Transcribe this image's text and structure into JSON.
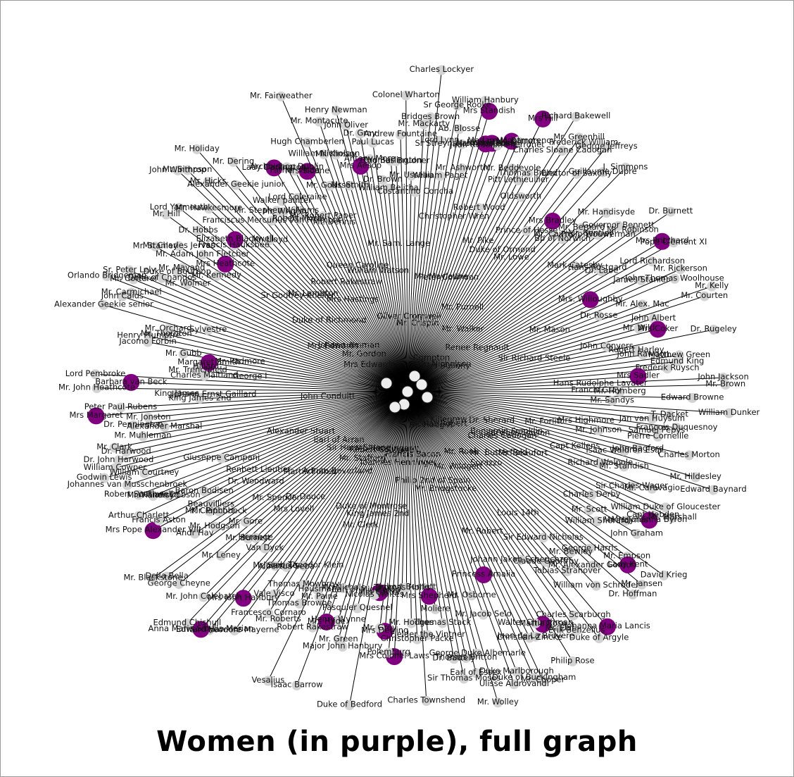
{
  "caption": "Women (in purple), full graph",
  "colors": {
    "woman": "#800080",
    "man": "#d3d3d3",
    "edge": "#000000",
    "label": "#111111"
  },
  "nodes": [
    {
      "label": "William Paget",
      "g": "m"
    },
    {
      "label": "Sr George Rooke",
      "g": "m"
    },
    {
      "label": "Ab. Blosse",
      "g": "m"
    },
    {
      "label": "Sr Streynsham Masters",
      "g": "m"
    },
    {
      "label": "Mr. Ashworth",
      "g": "m"
    },
    {
      "label": "William Hanbury",
      "g": "m"
    },
    {
      "label": "Mrs Standish",
      "g": "w"
    },
    {
      "label": "Mrs Anne Rose",
      "g": "w"
    },
    {
      "label": "Miss Stanley",
      "g": "w"
    },
    {
      "label": "Jean Rodolphe Perronet",
      "g": "m"
    },
    {
      "label": "Robert Wood",
      "g": "m"
    },
    {
      "label": "Madam Montmorency",
      "g": "w"
    },
    {
      "label": "Mr. Barrets",
      "g": "m"
    },
    {
      "label": "Mr. Beddevole",
      "g": "m"
    },
    {
      "label": "Mrs Hill",
      "g": "w"
    },
    {
      "label": "Pitt Lethieullier",
      "g": "m"
    },
    {
      "label": "Thomas Brand",
      "g": "m"
    },
    {
      "label": "Oldsworth",
      "g": "m"
    },
    {
      "label": "Richard Bakewell",
      "g": "m"
    },
    {
      "label": "Charles Sloane Cadogan",
      "g": "m"
    },
    {
      "label": "Mr. Greenhill",
      "g": "m"
    },
    {
      "label": "Frederick William",
      "g": "m"
    },
    {
      "label": "Prince of Hesse",
      "g": "m"
    },
    {
      "label": "Elector of Saxony",
      "g": "m"
    },
    {
      "label": "George Jeffreys",
      "g": "m"
    },
    {
      "label": "Mrs Bradley",
      "g": "w"
    },
    {
      "label": "Guillaume Dupré",
      "g": "m"
    },
    {
      "label": "Mr. Cairns",
      "g": "m"
    },
    {
      "label": "J. Simmons",
      "g": "m"
    },
    {
      "label": "Bp of Norwich",
      "g": "m"
    },
    {
      "label": "Mr. Bernard",
      "g": "m"
    },
    {
      "label": "Mr. Handisyde",
      "g": "m"
    },
    {
      "label": "Mr. Bentley",
      "g": "m"
    },
    {
      "label": "Philip Wouwerman",
      "g": "m"
    },
    {
      "label": "Governor Bennett",
      "g": "m"
    },
    {
      "label": "Mark Catesby",
      "g": "m"
    },
    {
      "label": "Mr. Robinson",
      "g": "m"
    },
    {
      "label": "Dr. Burnett",
      "g": "m"
    },
    {
      "label": "Hans Rostgard",
      "g": "m"
    },
    {
      "label": "Dr. Labe",
      "g": "m"
    },
    {
      "label": "Mrs Pritchard",
      "g": "w"
    },
    {
      "label": "Pope Clement XI",
      "g": "m"
    },
    {
      "label": "Lord Richardson",
      "g": "m"
    },
    {
      "label": "Mrs. Willoughby",
      "g": "w"
    },
    {
      "label": "James Stanier",
      "g": "m"
    },
    {
      "label": "Mr. Rickerson",
      "g": "m"
    },
    {
      "label": "John Thomas Woolhouse",
      "g": "m"
    },
    {
      "label": "Dr. Rosse",
      "g": "m"
    },
    {
      "label": "Mr. Alex. Mac",
      "g": "m"
    },
    {
      "label": "Mr. Kelly",
      "g": "m"
    },
    {
      "label": "Mr. Courten",
      "g": "m"
    },
    {
      "label": "John Albert",
      "g": "m"
    },
    {
      "label": "Mr. Wild",
      "g": "m"
    },
    {
      "label": "Mrs Coker",
      "g": "w"
    },
    {
      "label": "John Conyers",
      "g": "m"
    },
    {
      "label": "Dr. Rugeley",
      "g": "m"
    },
    {
      "label": "Robert Harley",
      "g": "m"
    },
    {
      "label": "John Rawdon",
      "g": "m"
    },
    {
      "label": "Matthew Green",
      "g": "m"
    },
    {
      "label": "Edmund King",
      "g": "m"
    },
    {
      "label": "Frederik Ruysch",
      "g": "m"
    },
    {
      "label": "Mrs Sadler",
      "g": "w"
    },
    {
      "label": "John Jackson",
      "g": "m"
    },
    {
      "label": "Mr. Brown",
      "g": "m"
    },
    {
      "label": "Mr. Homberg",
      "g": "m"
    },
    {
      "label": "Edward Browne",
      "g": "m"
    },
    {
      "label": "Mr. Sandys",
      "g": "m"
    },
    {
      "label": "William Dunker",
      "g": "m"
    },
    {
      "label": "T. Dacket",
      "g": "m"
    },
    {
      "label": "Jan van Huysum",
      "g": "m"
    },
    {
      "label": "Francois Duquesnoy",
      "g": "m"
    },
    {
      "label": "Samuel Pepys",
      "g": "m"
    },
    {
      "label": "Pierre Corneille",
      "g": "m"
    },
    {
      "label": "Mr. Johnson",
      "g": "m"
    },
    {
      "label": "Charles Morton",
      "g": "m"
    },
    {
      "label": "John Bagford",
      "g": "m"
    },
    {
      "label": "Isaac Waldron Esqr",
      "g": "m"
    },
    {
      "label": "Mr. Hildesley",
      "g": "m"
    },
    {
      "label": "Edward Baynard",
      "g": "m"
    },
    {
      "label": "Mr. Standish",
      "g": "m"
    },
    {
      "label": "Richard Walpole",
      "g": "m"
    },
    {
      "label": "Mr. Caravagio",
      "g": "m"
    },
    {
      "label": "Sir Charles Wager",
      "g": "m"
    },
    {
      "label": "William Duke of Gloucester",
      "g": "m"
    },
    {
      "label": "Mr. Marshall",
      "g": "m"
    },
    {
      "label": "Capt Hebden",
      "g": "m"
    },
    {
      "label": "Mrs Johanna Byron",
      "g": "w"
    },
    {
      "label": "Charles Derby",
      "g": "m"
    },
    {
      "label": "Mr. Haynes",
      "g": "m"
    },
    {
      "label": "John Graham",
      "g": "m"
    },
    {
      "label": "Mr. Scott",
      "g": "m"
    },
    {
      "label": "William Sherard",
      "g": "m"
    },
    {
      "label": "David Krieg",
      "g": "m"
    },
    {
      "label": "Mr. Empson",
      "g": "m"
    },
    {
      "label": "Lady Kent",
      "g": "w"
    },
    {
      "label": "Mr. Jansen",
      "g": "m"
    },
    {
      "label": "George Harris",
      "g": "m"
    },
    {
      "label": "Dr. Hoffman",
      "g": "m"
    },
    {
      "label": "Mr. Alexander Gordon",
      "g": "m"
    },
    {
      "label": "Mr. Bewley",
      "g": "m"
    },
    {
      "label": "William von Schroder",
      "g": "m"
    },
    {
      "label": "Sir Edward Nicholas",
      "g": "m"
    },
    {
      "label": "Tobias Stranover",
      "g": "m"
    },
    {
      "label": "Johanna Maria Lancis",
      "g": "w"
    },
    {
      "label": "Claude Geoffroy",
      "g": "m"
    },
    {
      "label": "Duke of Argyle",
      "g": "m"
    },
    {
      "label": "Charles Scarburgh",
      "g": "m"
    },
    {
      "label": "Erik Benzelius",
      "g": "m"
    },
    {
      "label": "Johann Jakob Scheuchzer",
      "g": "m"
    },
    {
      "label": "Mr. Elst",
      "g": "m"
    },
    {
      "label": "Philip Rose",
      "g": "m"
    },
    {
      "label": "Mattie Rose",
      "g": "w"
    },
    {
      "label": "Walter Churchman",
      "g": "m"
    },
    {
      "label": "Jean de La Bruyere",
      "g": "m"
    },
    {
      "label": "Christian Zincke",
      "g": "m"
    },
    {
      "label": "Mr. Cooper",
      "g": "m"
    },
    {
      "label": "Duke of Buckingham",
      "g": "m"
    },
    {
      "label": "Princess Amalia",
      "g": "w"
    },
    {
      "label": "Duke Marlborough",
      "g": "m"
    },
    {
      "label": "Ulisse Aldrovandi",
      "g": "m"
    },
    {
      "label": "Mr. Jacob Selo",
      "g": "m"
    },
    {
      "label": "Mr. Osborne",
      "g": "m"
    },
    {
      "label": "Mr. Wolley",
      "g": "m"
    },
    {
      "label": "George Duke Albemarle",
      "g": "m"
    },
    {
      "label": "Earl of Essex",
      "g": "m"
    },
    {
      "label": "Thomas Britton",
      "g": "m"
    },
    {
      "label": "Sir Thomas Moses",
      "g": "m"
    },
    {
      "label": "Dr. Battely",
      "g": "m"
    },
    {
      "label": "Thomas Stack",
      "g": "m"
    },
    {
      "label": "Moliere",
      "g": "m"
    },
    {
      "label": "Mrs Shepherd",
      "g": "w"
    },
    {
      "label": "Fielder the Vintner",
      "g": "m"
    },
    {
      "label": "Charles Townshend",
      "g": "m"
    },
    {
      "label": "Christopher Packe",
      "g": "m"
    },
    {
      "label": "Mr. Hodges",
      "g": "m"
    },
    {
      "label": "Jigbert Burnett",
      "g": "m"
    },
    {
      "label": "Thomas Hollis",
      "g": "m"
    },
    {
      "label": "Mrs Colonel Laws",
      "g": "w"
    },
    {
      "label": "Polemburg",
      "g": "m"
    },
    {
      "label": "Mrs Derring",
      "g": "w"
    },
    {
      "label": "Mr. Grey",
      "g": "m"
    },
    {
      "label": "Mrs Catter",
      "g": "w"
    },
    {
      "label": "Nicolas Waites",
      "g": "m"
    },
    {
      "label": "Duke of Bedford",
      "g": "m"
    },
    {
      "label": "Earl of Middleton",
      "g": "m"
    },
    {
      "label": "Pasquier Quesnel",
      "g": "m"
    },
    {
      "label": "Major John Hanbury",
      "g": "m"
    },
    {
      "label": "Mr. Green",
      "g": "m"
    },
    {
      "label": "Henry Wynne",
      "g": "m"
    },
    {
      "label": "Mr. Nichols",
      "g": "m"
    },
    {
      "label": "Mrs Hyde",
      "g": "w"
    },
    {
      "label": "Isaac Barrow",
      "g": "m"
    },
    {
      "label": "Robert Rakestraw",
      "g": "m"
    },
    {
      "label": "Mr. Paine",
      "g": "m"
    },
    {
      "label": "Housman",
      "g": "m"
    },
    {
      "label": "Vesalius",
      "g": "m"
    },
    {
      "label": "Thomas Browne",
      "g": "m"
    },
    {
      "label": "Thomas Mowbray",
      "g": "m"
    },
    {
      "label": "Mr. Roberts",
      "g": "m"
    },
    {
      "label": "Jacob Theodor Klein",
      "g": "m"
    },
    {
      "label": "Francesco Cornaro",
      "g": "m"
    },
    {
      "label": "Vale Visco",
      "g": "m"
    },
    {
      "label": "Albertus Seba",
      "g": "m"
    },
    {
      "label": "Sir Theodore Mayerne",
      "g": "m"
    },
    {
      "label": "Mr. Sercola",
      "g": "m"
    },
    {
      "label": "Mrs John Hanbury",
      "g": "w"
    },
    {
      "label": "Edward Hawkins",
      "g": "m"
    },
    {
      "label": "Anna Maria Sibylla Merian",
      "g": "w"
    },
    {
      "label": "Van Dyck",
      "g": "m"
    },
    {
      "label": "Edmund Chishull",
      "g": "m"
    },
    {
      "label": "Mr. John Colebatch",
      "g": "m"
    },
    {
      "label": "Herange",
      "g": "m"
    },
    {
      "label": "Mr. Burnett",
      "g": "m"
    },
    {
      "label": "Mr. Leney",
      "g": "m"
    },
    {
      "label": "George Cheyne",
      "g": "m"
    },
    {
      "label": "Mr. Gore",
      "g": "m"
    },
    {
      "label": "Della Bella",
      "g": "m"
    },
    {
      "label": "Mr. Blackstone",
      "g": "m"
    },
    {
      "label": "Mr. Hodgson",
      "g": "m"
    },
    {
      "label": "Andr Hay",
      "g": "m"
    },
    {
      "label": "Mr. Pinchbeck",
      "g": "m"
    },
    {
      "label": "Mr. Claphort",
      "g": "m"
    },
    {
      "label": "Beauvilliers",
      "g": "m"
    },
    {
      "label": "Mrs Pope Alexander VIII",
      "g": "w"
    },
    {
      "label": "Francis Aston",
      "g": "m"
    },
    {
      "label": "Baron Bodisen",
      "g": "m"
    },
    {
      "label": "Arthur Charlett",
      "g": "m"
    },
    {
      "label": "William Dobson",
      "g": "m"
    },
    {
      "label": "Mr. Handisyd",
      "g": "m"
    },
    {
      "label": "Robert Southwell",
      "g": "m"
    },
    {
      "label": "Giuseppe Campani",
      "g": "m"
    },
    {
      "label": "Johannes van Musschenbroek",
      "g": "m"
    },
    {
      "label": "William Courtney",
      "g": "m"
    },
    {
      "label": "Godwin Lewis",
      "g": "m"
    },
    {
      "label": "William Cowper",
      "g": "m"
    },
    {
      "label": "Dr. John Harwood",
      "g": "m"
    },
    {
      "label": "Dr. Harwood",
      "g": "m"
    },
    {
      "label": "Mr. Clark",
      "g": "m"
    },
    {
      "label": "Mr. Muhleman",
      "g": "m"
    },
    {
      "label": "Alexander Marshal",
      "g": "m"
    },
    {
      "label": "Dr. Pennington",
      "g": "m"
    },
    {
      "label": "Mr. Jonston",
      "g": "m"
    },
    {
      "label": "Mrs Margaret",
      "g": "w"
    },
    {
      "label": "Peter Paul Rubens",
      "g": "m"
    },
    {
      "label": "King James 2nd",
      "g": "m"
    },
    {
      "label": "King James",
      "g": "m"
    },
    {
      "label": "Mr. John Heathcote",
      "g": "m"
    },
    {
      "label": "Barbara van Beck",
      "g": "w"
    },
    {
      "label": "Lord Pembroke",
      "g": "m"
    },
    {
      "label": "Charles Maitland",
      "g": "m"
    },
    {
      "label": "Mr. Trenchfield",
      "g": "m"
    },
    {
      "label": "Hillard",
      "g": "m"
    },
    {
      "label": "Margaret Smith",
      "g": "w"
    },
    {
      "label": "Mr. Gubb",
      "g": "m"
    },
    {
      "label": "Jacomo Forbin",
      "g": "m"
    },
    {
      "label": "Henry Plumptre",
      "g": "m"
    },
    {
      "label": "Mr. Thornton",
      "g": "m"
    },
    {
      "label": "Mr. Orchard",
      "g": "m"
    },
    {
      "label": "Alexander Geekie senior",
      "g": "m"
    },
    {
      "label": "Sylvestre",
      "g": "m"
    },
    {
      "label": "John Caius",
      "g": "m"
    },
    {
      "label": "Mr. Carmichael",
      "g": "m"
    },
    {
      "label": "Orlando Bridgeman",
      "g": "m"
    },
    {
      "label": "Mr. Cotterel",
      "g": "m"
    },
    {
      "label": "Sr. Peter Lely",
      "g": "m"
    },
    {
      "label": "Duke of Chandos",
      "g": "m"
    },
    {
      "label": "Mr. Wolmer",
      "g": "m"
    },
    {
      "label": "Duke of Bourbon",
      "g": "m"
    },
    {
      "label": "Mr. Mayand",
      "g": "m"
    },
    {
      "label": "Mr. Stanley",
      "g": "m"
    },
    {
      "label": "Mr. Kennedy",
      "g": "m"
    },
    {
      "label": "Mr. Charles Jervas",
      "g": "m"
    },
    {
      "label": "Mr. Adam John Fletcher",
      "g": "m"
    },
    {
      "label": "Mrs Heathcote",
      "g": "w"
    },
    {
      "label": "Mr. Hill",
      "g": "m"
    },
    {
      "label": "Dr. Hobbs",
      "g": "m"
    },
    {
      "label": "Lord Yarmouth",
      "g": "m"
    },
    {
      "label": "Francis Hauksbee",
      "g": "m"
    },
    {
      "label": "Elizabeth Blackwell",
      "g": "w"
    },
    {
      "label": "Mr. Hawkesmore",
      "g": "m"
    },
    {
      "label": "John Winthrop",
      "g": "m"
    },
    {
      "label": "Mr. Simpson",
      "g": "m"
    },
    {
      "label": "Mr. Hicks",
      "g": "m"
    },
    {
      "label": "Mr. Lloyd",
      "g": "m"
    },
    {
      "label": "Mr. Holiday",
      "g": "m"
    },
    {
      "label": "Alexander Geekie junior",
      "g": "m"
    },
    {
      "label": "Franciscus Mercurius van Helmont",
      "g": "m"
    },
    {
      "label": "Mr. Dering",
      "g": "m"
    },
    {
      "label": "Mr. Stephen Williams",
      "g": "m"
    },
    {
      "label": "Mr. Wright",
      "g": "m"
    },
    {
      "label": "Walker painter",
      "g": "m"
    },
    {
      "label": "Robert Moray",
      "g": "m"
    },
    {
      "label": "Lady Darlington",
      "g": "w"
    },
    {
      "label": "Lord Coleraine",
      "g": "m"
    },
    {
      "label": "Archbishop Dublin",
      "g": "m"
    },
    {
      "label": "Father Visde",
      "g": "m"
    },
    {
      "label": "Mr. Robert Paper",
      "g": "m"
    },
    {
      "label": "Mrs Sloane",
      "g": "w"
    },
    {
      "label": "Mr. Fairweather",
      "g": "m"
    },
    {
      "label": "Hugh Chamberlen",
      "g": "m"
    },
    {
      "label": "Mr. Gousset",
      "g": "m"
    },
    {
      "label": "William Nicholson",
      "g": "m"
    },
    {
      "label": "Mr. Montacute",
      "g": "m"
    },
    {
      "label": "Mr. Kinsay",
      "g": "m"
    },
    {
      "label": "Mr. Smith",
      "g": "m"
    },
    {
      "label": "Henry Newman",
      "g": "m"
    },
    {
      "label": "John Oliver",
      "g": "m"
    },
    {
      "label": "Mrs Aesop",
      "g": "w"
    },
    {
      "label": "Dr. Gray",
      "g": "m"
    },
    {
      "label": "Antony More",
      "g": "m"
    },
    {
      "label": "Paul Lucas",
      "g": "m"
    },
    {
      "label": "Dr. Brown",
      "g": "m"
    },
    {
      "label": "William Belitha",
      "g": "m"
    },
    {
      "label": "Lord Burlington",
      "g": "m"
    },
    {
      "label": "Thomas Brudner",
      "g": "m"
    },
    {
      "label": "Andrew Fountaine",
      "g": "m"
    },
    {
      "label": "Colonel Wharton",
      "g": "m"
    },
    {
      "label": "Mr. Usseau",
      "g": "m"
    },
    {
      "label": "Costantino Concha",
      "g": "m"
    },
    {
      "label": "Mr. Mackarty",
      "g": "m"
    },
    {
      "label": "Bridges Brown",
      "g": "m"
    },
    {
      "label": "Charles Lockyer",
      "g": "m"
    },
    {
      "label": "Lord Lynn",
      "g": "m"
    }
  ],
  "inner_labels": [
    "Joannes Henninger",
    "Renbett Lieutier",
    "Duke of Montrose",
    "Mrs Bulleny",
    "Mr. Gordon",
    "Renee Regnault",
    "Mr. Dennis",
    "Sorazzo",
    "Compton",
    "Jacques Tonson",
    "King James 2nd",
    "Mr. Sam. Lange",
    "Mr. Lambton",
    "Nicolas Robert",
    "Benjamin Franklin",
    "Philip 2nd of Spain",
    "John Conduitt",
    "Alexander Stuart",
    "Mr. Wildgert",
    "Mrs Highmore",
    "Louis 14th",
    "Duke of Richmond",
    "Christopher Wren",
    "Mr. Bridgstocke",
    "Mr. Robert",
    "Mr. Butterfield",
    "Hans Rudolphe Lavater",
    "Charles Cadogan",
    "Peter Collinson",
    "Martin Folkes",
    "Oliver Cromwell",
    "Mr. Purnell",
    "Johann Ernst Gaillard",
    "Dr. Hodges",
    "Mr. Spencer",
    "Queen Caroline",
    "Mr. Mason",
    "Mr. Rook",
    "Robert Rakestraw",
    "Sir Hans Sloane",
    "Mrs Lovell",
    "Mrs Hastings",
    "Mr. Beaufort",
    "Dr. Sherard",
    "Francis Bacon",
    "Dr. Woodward",
    "Mr. Clerk",
    "Dr. Douce",
    "Earl of Arran",
    "Johann Amman",
    "Robert Southwell",
    "George I",
    "Mrs Edwards",
    "Mrs Edwards",
    "Mr. Walker",
    "William Watson",
    "Mr. Killegrew",
    "Sr Godfrey Kneller",
    "Mr. Padmore",
    "Francis Gray",
    "Adrian Beverland",
    "Capt Kellens",
    "Mr. Nicholson",
    "Sir Richard Steele",
    "Mr. Lowe",
    "Mr. Maylaune",
    "Mr. Stafford",
    "Duke of Ormond",
    "Mr. Crispin",
    "Mr. Pike",
    "Mr. Forlitt",
    "Mr. Handinger"
  ]
}
